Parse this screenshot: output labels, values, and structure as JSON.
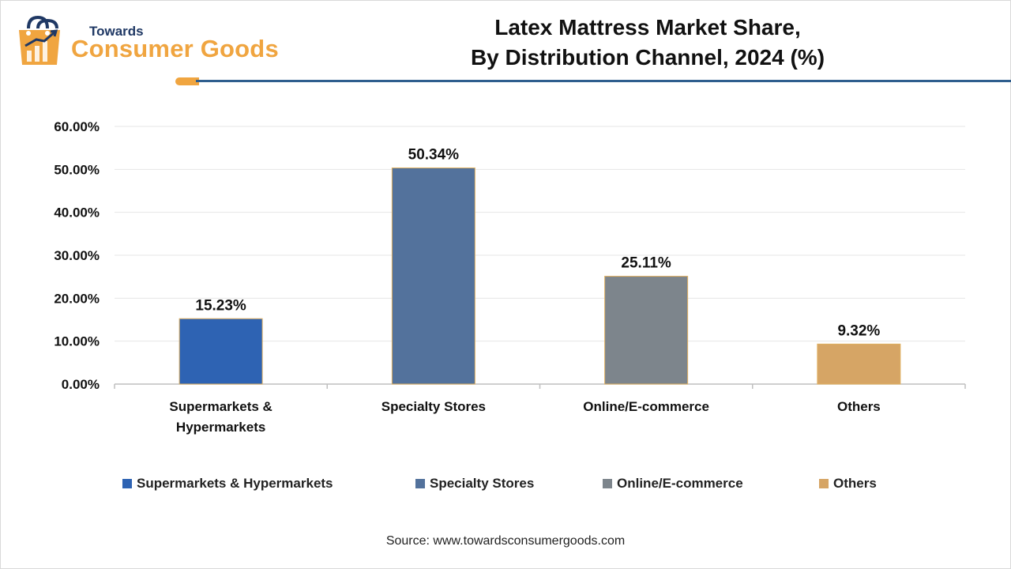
{
  "logo": {
    "top_text": "Towards",
    "main_text": "Consumer Goods",
    "icon": "shopping-bag-chart-icon"
  },
  "title_line1": "Latex Mattress Market Share,",
  "title_line2": "By Distribution Channel, 2024 (%)",
  "source": "Source: www.towardsconsumergoods.com",
  "colors": {
    "brand_orange": "#f0a540",
    "brand_navy": "#1f3864",
    "rule": "#2f5e8e"
  },
  "chart_data": {
    "type": "bar",
    "title": "Latex Mattress Market Share, By Distribution Channel, 2024 (%)",
    "categories": [
      "Supermarkets & Hypermarkets",
      "Specialty Stores",
      "Online/E-commerce",
      "Others"
    ],
    "category_tick_lines": [
      [
        "Supermarkets &",
        "Hypermarkets"
      ],
      [
        "Specialty Stores"
      ],
      [
        "Online/E-commerce"
      ],
      [
        "Others"
      ]
    ],
    "values": [
      15.23,
      50.34,
      25.11,
      9.32
    ],
    "data_labels": [
      "15.23%",
      "50.34%",
      "25.11%",
      "9.32%"
    ],
    "bar_colors": [
      "#2e63b3",
      "#53729c",
      "#7d858c",
      "#d6a565"
    ],
    "ylim": [
      0,
      60
    ],
    "yticks": [
      0,
      10,
      20,
      30,
      40,
      50,
      60
    ],
    "ytick_labels": [
      "0.00%",
      "10.00%",
      "20.00%",
      "30.00%",
      "40.00%",
      "50.00%",
      "60.00%"
    ],
    "xlabel": "",
    "ylabel": "",
    "grid": true,
    "legend": {
      "position": "bottom",
      "entries": [
        "Supermarkets & Hypermarkets",
        "Specialty Stores",
        "Online/E-commerce",
        "Others"
      ]
    }
  }
}
